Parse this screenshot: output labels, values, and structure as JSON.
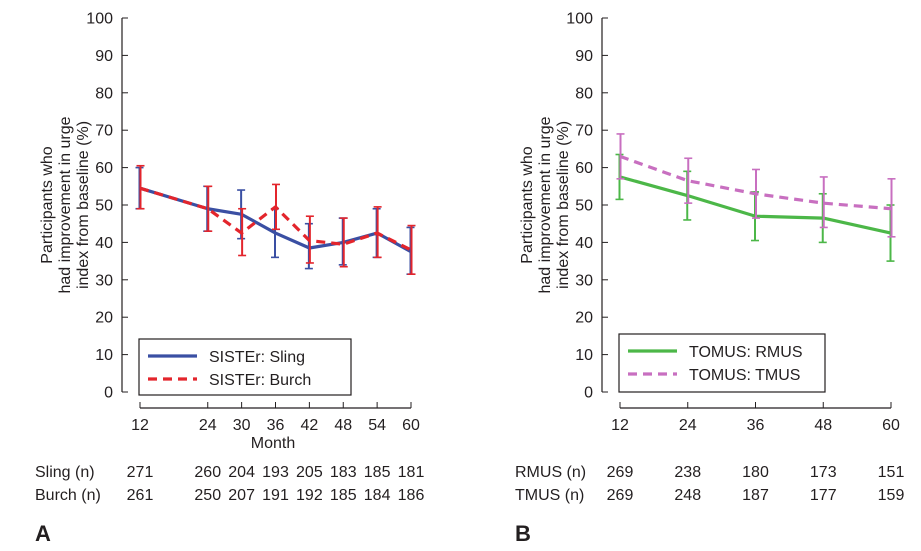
{
  "panels": [
    {
      "panel_label": "A",
      "ylabel_lines": [
        "Participants who",
        "had improvement in urge",
        "index from baseline (%)"
      ],
      "xlabel": "Month",
      "legend": [
        "SISTEr: Sling",
        "SISTEr: Burch"
      ],
      "count_rows": [
        {
          "label": "Sling (n)",
          "values": [
            "271",
            "260",
            "204",
            "193",
            "205",
            "183",
            "185",
            "181"
          ]
        },
        {
          "label": "Burch (n)",
          "values": [
            "261",
            "250",
            "207",
            "191",
            "192",
            "185",
            "184",
            "186"
          ]
        }
      ]
    },
    {
      "panel_label": "B",
      "ylabel_lines": [
        "Participants who",
        "had improvement in urge",
        "index from baseline (%)"
      ],
      "xlabel": "",
      "legend": [
        "TOMUS: RMUS",
        "TOMUS: TMUS"
      ],
      "count_rows": [
        {
          "label": "RMUS (n)",
          "values": [
            "269",
            "238",
            "180",
            "173",
            "151"
          ]
        },
        {
          "label": "TMUS (n)",
          "values": [
            "269",
            "248",
            "187",
            "177",
            "159"
          ]
        }
      ]
    }
  ],
  "chart_data": [
    {
      "type": "line",
      "panel": "A",
      "title": "",
      "xlabel": "Month",
      "ylabel": "Participants who had improvement in urge index from baseline (%)",
      "x": [
        12,
        24,
        30,
        36,
        42,
        48,
        54,
        60
      ],
      "xticks": [
        12,
        24,
        30,
        36,
        42,
        48,
        54,
        60
      ],
      "ylim": [
        0,
        100
      ],
      "yticks": [
        0,
        10,
        20,
        30,
        40,
        50,
        60,
        70,
        80,
        90,
        100
      ],
      "grid": false,
      "legend_position": "bottom-left",
      "series": [
        {
          "name": "SISTEr: Sling",
          "color": "#3a4fa3",
          "style": "solid",
          "values": [
            54.5,
            49,
            47.5,
            42.5,
            38.5,
            40,
            42.5,
            37.5
          ],
          "lower": [
            49,
            43,
            41,
            36,
            33,
            34,
            36,
            31.5
          ],
          "upper": [
            60,
            55,
            54,
            49,
            45,
            46.5,
            49,
            44
          ]
        },
        {
          "name": "SISTEr: Burch",
          "color": "#e3252c",
          "style": "dashed",
          "values": [
            54.5,
            49,
            42.5,
            49.5,
            40.5,
            39.5,
            42.5,
            38
          ],
          "lower": [
            49,
            43,
            36.5,
            43.5,
            34.5,
            33.5,
            36,
            31.5
          ],
          "upper": [
            60.5,
            55,
            49,
            55.5,
            47,
            46.5,
            49.5,
            44.5
          ]
        }
      ]
    },
    {
      "type": "line",
      "panel": "B",
      "title": "",
      "xlabel": "",
      "ylabel": "Participants who had improvement in urge index from baseline (%)",
      "x": [
        12,
        24,
        36,
        48,
        60
      ],
      "xticks": [
        12,
        24,
        36,
        48,
        60
      ],
      "ylim": [
        0,
        100
      ],
      "yticks": [
        0,
        10,
        20,
        30,
        40,
        50,
        60,
        70,
        80,
        90,
        100
      ],
      "grid": false,
      "legend_position": "bottom-left",
      "series": [
        {
          "name": "TOMUS: RMUS",
          "color": "#4cb748",
          "style": "solid",
          "values": [
            57.5,
            52.5,
            47,
            46.5,
            42.5
          ],
          "lower": [
            51.5,
            46,
            40.5,
            40,
            35
          ],
          "upper": [
            63.5,
            59,
            53.5,
            53,
            50
          ]
        },
        {
          "name": "TOMUS: TMUS",
          "color": "#c86fc0",
          "style": "dashed",
          "values": [
            63,
            56.5,
            53,
            50.5,
            49
          ],
          "lower": [
            57,
            50.5,
            46.5,
            44,
            41.5
          ],
          "upper": [
            69,
            62.5,
            59.5,
            57.5,
            57
          ]
        }
      ]
    }
  ]
}
